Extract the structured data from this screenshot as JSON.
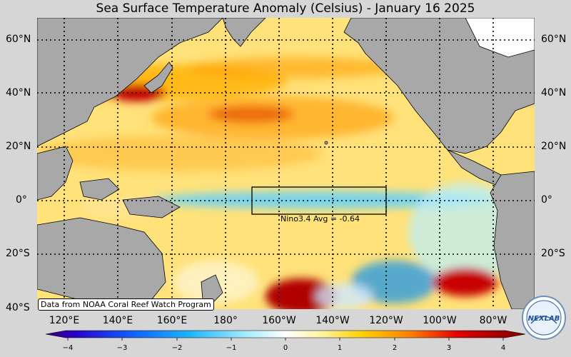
{
  "title": "Sea Surface Temperature Anomaly (Celsius) - January 16 2025",
  "lat_labels": [
    "60°N",
    "40°N",
    "20°N",
    "0°",
    "20°S",
    "40°S"
  ],
  "lon_labels": [
    "120°E",
    "140°E",
    "160°E",
    "180°",
    "160°W",
    "140°W",
    "120°W",
    "100°W",
    "80°W"
  ],
  "colorbar": {
    "ticks": [
      "−4",
      "−3",
      "−2",
      "−1",
      "0",
      "1",
      "2",
      "3",
      "4"
    ],
    "min": -4,
    "max": 4
  },
  "nino_box": {
    "label": "Nino3.4 Avg = -0.64",
    "lat_range": [
      -5,
      5
    ],
    "lon_range": [
      "170°W",
      "120°W"
    ]
  },
  "source_note": "Data from NOAA Coral Reef Watch Program",
  "logo_text": "NEXLAB",
  "colors": {
    "land": "#a8a8a8",
    "ocean_base": "#ffe27a",
    "warm": "#e60000",
    "cool": "#19b4ff"
  }
}
